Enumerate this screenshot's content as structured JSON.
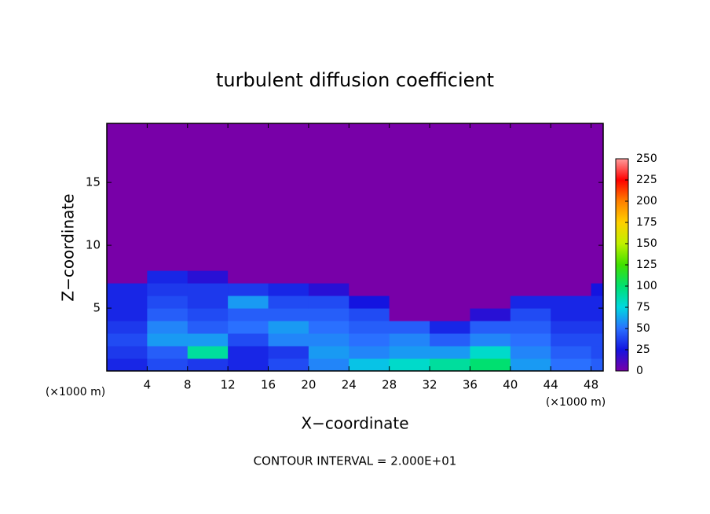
{
  "chart_data": {
    "type": "heatmap",
    "title": "turbulent diffusion coefficient",
    "xlabel": "X−coordinate",
    "ylabel": "Z−coordinate",
    "x_unit_left": "(×1000 m)",
    "x_unit_right": "(×1000 m)",
    "note": "CONTOUR INTERVAL = 2.000E+01",
    "x": [
      0,
      4,
      8,
      12,
      16,
      20,
      24,
      28,
      32,
      36,
      40,
      44,
      48,
      49.2
    ],
    "y": [
      0,
      1,
      2,
      3,
      4,
      5,
      6,
      7,
      8,
      9,
      10,
      19.7
    ],
    "z": [
      [
        30,
        40,
        35,
        30,
        40,
        55,
        70,
        80,
        90,
        100,
        60,
        50,
        45
      ],
      [
        35,
        45,
        90,
        30,
        35,
        60,
        55,
        60,
        60,
        80,
        55,
        45,
        40
      ],
      [
        40,
        60,
        60,
        40,
        55,
        55,
        50,
        55,
        45,
        55,
        50,
        40,
        40
      ],
      [
        35,
        55,
        45,
        50,
        60,
        50,
        45,
        45,
        30,
        45,
        45,
        35,
        35
      ],
      [
        30,
        45,
        40,
        45,
        45,
        45,
        40,
        0,
        0,
        20,
        40,
        30,
        30
      ],
      [
        30,
        40,
        35,
        60,
        40,
        40,
        25,
        0,
        0,
        0,
        30,
        30,
        30
      ],
      [
        30,
        35,
        35,
        35,
        30,
        20,
        0,
        0,
        0,
        0,
        0,
        0,
        25
      ],
      [
        0,
        30,
        20,
        0,
        0,
        0,
        0,
        0,
        0,
        0,
        0,
        0,
        0
      ],
      [
        0,
        0,
        0,
        0,
        0,
        0,
        0,
        0,
        0,
        0,
        0,
        0,
        0
      ],
      [
        0,
        0,
        0,
        0,
        0,
        0,
        0,
        0,
        0,
        0,
        0,
        0,
        0
      ],
      [
        0,
        0,
        0,
        0,
        0,
        0,
        0,
        0,
        0,
        0,
        0,
        0,
        0
      ]
    ],
    "xlim": [
      0,
      49.2
    ],
    "ylim": [
      0,
      19.7
    ],
    "xticks": [
      4,
      8,
      12,
      16,
      20,
      24,
      28,
      32,
      36,
      40,
      44,
      48
    ],
    "yticks": [
      5,
      10,
      15
    ],
    "clim": [
      0,
      250
    ],
    "cticks": [
      0,
      25,
      50,
      75,
      100,
      125,
      150,
      175,
      200,
      225,
      250
    ],
    "colorscale": [
      "#7800a8",
      "#1414e0",
      "#2a70ff",
      "#00d8e0",
      "#00e070",
      "#40e000",
      "#c0f000",
      "#ffd000",
      "#ff8000",
      "#ff0000",
      "#ff9c9c"
    ]
  }
}
